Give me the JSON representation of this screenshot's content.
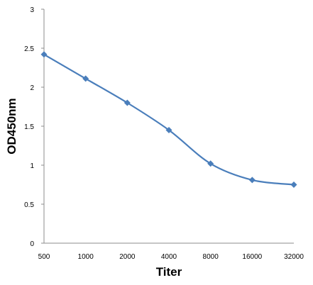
{
  "chart_data": {
    "type": "line",
    "title": "",
    "xlabel": "Titer",
    "ylabel": "OD450nm",
    "categories": [
      "500",
      "1000",
      "2000",
      "4000",
      "8000",
      "16000",
      "32000"
    ],
    "series": [
      {
        "values": [
          2.42,
          2.11,
          1.8,
          1.45,
          1.02,
          0.81,
          0.75
        ]
      }
    ],
    "yticks": [
      "0",
      "0.5",
      "1",
      "1.5",
      "2",
      "2.5",
      "3"
    ],
    "ylim": [
      0,
      3
    ],
    "grid": false,
    "legend": "none",
    "line_color": "#4a7ebb"
  }
}
